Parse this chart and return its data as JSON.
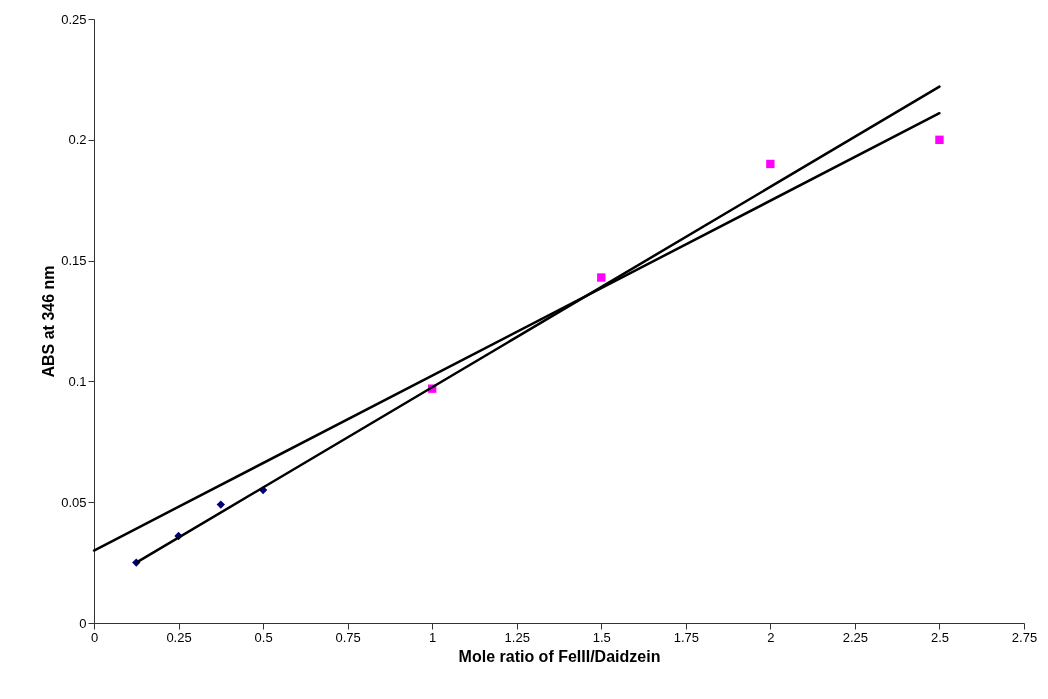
{
  "chart_data": {
    "type": "scatter",
    "xlabel": "Mole ratio of FeIII/Daidzein",
    "ylabel": "ABS at 346 nm",
    "xlim": [
      0,
      2.75
    ],
    "xticks": [
      0,
      0.25,
      0.5,
      0.75,
      1,
      1.25,
      1.5,
      1.75,
      2,
      2.25,
      2.5,
      2.75
    ],
    "ylim": [
      0,
      0.25
    ],
    "yticks": [
      0,
      0.05,
      0.1,
      0.15,
      0.2,
      0.25
    ],
    "grid": false,
    "series": [
      {
        "type": "scatter",
        "marker": "diamond",
        "color": "#000080",
        "x": [
          0.125,
          0.25,
          0.375,
          0.5
        ],
        "values": [
          0.025,
          0.036,
          0.049,
          0.055
        ]
      },
      {
        "type": "scatter",
        "marker": "square",
        "color": "#ff00ff",
        "x": [
          1,
          1.5,
          2,
          2.5
        ],
        "values": [
          0.097,
          0.143,
          0.19,
          0.2
        ]
      },
      {
        "type": "line",
        "line_style": "solid",
        "color": "#000000",
        "x": [
          0.125,
          2.5
        ],
        "values": [
          0.025,
          0.222
        ]
      },
      {
        "type": "line",
        "line_style": "solid",
        "color": "#000000",
        "x": [
          0,
          2.5
        ],
        "values": [
          0.03,
          0.211
        ]
      }
    ]
  }
}
